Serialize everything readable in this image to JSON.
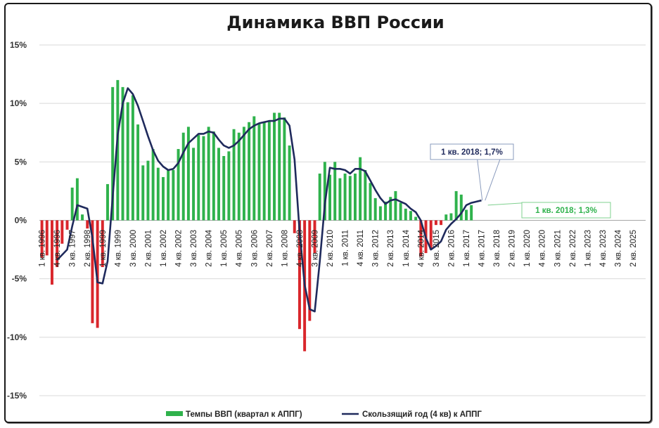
{
  "chart_data": {
    "type": "bar",
    "title": "Динамика ВВП России",
    "ylim": [
      -15,
      15
    ],
    "y_ticks": [
      "15%",
      "10%",
      "5%",
      "0%",
      "-5%",
      "-10%",
      "-15%"
    ],
    "y_tick_values": [
      15,
      10,
      5,
      0,
      -5,
      -10,
      -15
    ],
    "grid": true,
    "legend_position": "bottom",
    "x_range": [
      "1 кв. 1996",
      "4 кв. 2025"
    ],
    "x_ticks": [
      {
        "label": "1 кв. 1996",
        "q": 0
      },
      {
        "label": "4 кв. 1996",
        "q": 3
      },
      {
        "label": "3 кв. 1997",
        "q": 6
      },
      {
        "label": "2 кв. 1998",
        "q": 9
      },
      {
        "label": "1 кв. 1999",
        "q": 12
      },
      {
        "label": "4 кв. 1999",
        "q": 15
      },
      {
        "label": "3 кв. 2000",
        "q": 18
      },
      {
        "label": "2 кв. 2001",
        "q": 21
      },
      {
        "label": "1 кв. 2002",
        "q": 24
      },
      {
        "label": "4 кв. 2002",
        "q": 27
      },
      {
        "label": "3 кв. 2003",
        "q": 30
      },
      {
        "label": "2 кв. 2004",
        "q": 33
      },
      {
        "label": "1 кв. 2005",
        "q": 36
      },
      {
        "label": "4 кв. 2005",
        "q": 39
      },
      {
        "label": "3 кв. 2006",
        "q": 42
      },
      {
        "label": "2 кв. 2007",
        "q": 45
      },
      {
        "label": "1 кв. 2008",
        "q": 48
      },
      {
        "label": "4 кв. 2008",
        "q": 51
      },
      {
        "label": "3 кв. 2009",
        "q": 54
      },
      {
        "label": "2 кв. 2010",
        "q": 57
      },
      {
        "label": "1 кв. 2011",
        "q": 60
      },
      {
        "label": "4 кв. 2011",
        "q": 63
      },
      {
        "label": "3 кв. 2012",
        "q": 66
      },
      {
        "label": "2 кв. 2013",
        "q": 69
      },
      {
        "label": "1 кв. 2014",
        "q": 72
      },
      {
        "label": "4 кв. 2014",
        "q": 75
      },
      {
        "label": "3 кв. 2015",
        "q": 78
      },
      {
        "label": "2 кв. 2016",
        "q": 81
      },
      {
        "label": "1 кв. 2017",
        "q": 84
      },
      {
        "label": "4 кв. 2017",
        "q": 87
      },
      {
        "label": "3 кв. 2018",
        "q": 90
      },
      {
        "label": "2 кв. 2019",
        "q": 93
      },
      {
        "label": "1 кв. 2020",
        "q": 96
      },
      {
        "label": "4 кв. 2020",
        "q": 99
      },
      {
        "label": "3 кв. 2021",
        "q": 102
      },
      {
        "label": "2 кв. 2022",
        "q": 105
      },
      {
        "label": "1 кв. 2023",
        "q": 108
      },
      {
        "label": "4 кв. 2023",
        "q": 111
      },
      {
        "label": "3 кв. 2024",
        "q": 114
      },
      {
        "label": "2 кв. 2025",
        "q": 117
      }
    ],
    "series": [
      {
        "name": "Темпы ВВП (квартал к АППГ)",
        "kind": "bar",
        "positive_color": "#2fb24c",
        "negative_color": "#d9262b",
        "values": [
          -3.2,
          -3.0,
          -5.5,
          -4.0,
          -2.0,
          -0.8,
          2.8,
          3.6,
          0.5,
          -0.7,
          -8.8,
          -9.2,
          -4.0,
          3.1,
          11.4,
          12.0,
          11.4,
          10.1,
          10.7,
          8.2,
          4.7,
          5.1,
          6.1,
          4.5,
          3.7,
          4.3,
          4.3,
          6.1,
          7.5,
          8.0,
          6.2,
          7.3,
          7.2,
          8.0,
          7.6,
          6.2,
          5.5,
          5.9,
          7.8,
          7.5,
          8.0,
          8.4,
          8.9,
          8.3,
          8.4,
          8.5,
          9.2,
          9.2,
          8.8,
          6.4,
          -1.1,
          -9.3,
          -11.2,
          -8.6,
          -2.8,
          4.0,
          5.0,
          3.9,
          5.0,
          3.6,
          4.0,
          3.8,
          4.0,
          5.4,
          4.3,
          3.2,
          1.9,
          1.2,
          1.6,
          2.0,
          2.5,
          1.5,
          1.0,
          0.8,
          0.3,
          -3.1,
          -2.8,
          -2.5,
          -0.4,
          -0.4,
          0.5,
          0.6,
          2.5,
          2.2,
          0.9,
          1.3
        ],
        "annotation": {
          "text": "1 кв. 2018; 1,3%",
          "color": "#2fb24c",
          "q": 88,
          "value": 1.3
        }
      },
      {
        "name": "Скользящий год (4 кв) к АППГ",
        "kind": "line",
        "color": "#1f2a5c",
        "points": [
          [
            3,
            -3.4
          ],
          [
            5,
            -2.5
          ],
          [
            6,
            -0.5
          ],
          [
            7,
            1.3
          ],
          [
            9,
            1.0
          ],
          [
            10,
            -1.5
          ],
          [
            11,
            -5.3
          ],
          [
            12,
            -5.4
          ],
          [
            13,
            -3.5
          ],
          [
            14,
            2.0
          ],
          [
            15,
            7.3
          ],
          [
            16,
            10.0
          ],
          [
            17,
            11.3
          ],
          [
            18,
            10.8
          ],
          [
            19,
            9.8
          ],
          [
            20,
            8.5
          ],
          [
            21,
            7.2
          ],
          [
            22,
            6.0
          ],
          [
            23,
            5.1
          ],
          [
            24,
            4.6
          ],
          [
            25,
            4.3
          ],
          [
            26,
            4.4
          ],
          [
            27,
            4.9
          ],
          [
            28,
            5.8
          ],
          [
            29,
            6.6
          ],
          [
            30,
            7.0
          ],
          [
            31,
            7.4
          ],
          [
            32,
            7.4
          ],
          [
            33,
            7.6
          ],
          [
            34,
            7.5
          ],
          [
            35,
            6.9
          ],
          [
            36,
            6.4
          ],
          [
            37,
            6.2
          ],
          [
            38,
            6.4
          ],
          [
            39,
            6.8
          ],
          [
            40,
            7.3
          ],
          [
            41,
            7.8
          ],
          [
            42,
            8.1
          ],
          [
            43,
            8.3
          ],
          [
            44,
            8.4
          ],
          [
            45,
            8.5
          ],
          [
            46,
            8.5
          ],
          [
            47,
            8.7
          ],
          [
            48,
            8.7
          ],
          [
            49,
            8.1
          ],
          [
            50,
            5.2
          ],
          [
            51,
            -0.9
          ],
          [
            52,
            -5.5
          ],
          [
            53,
            -7.6
          ],
          [
            54,
            -7.8
          ],
          [
            55,
            -3.5
          ],
          [
            56,
            1.4
          ],
          [
            57,
            4.5
          ],
          [
            58,
            4.4
          ],
          [
            59,
            4.4
          ],
          [
            60,
            4.3
          ],
          [
            61,
            4.0
          ],
          [
            62,
            4.4
          ],
          [
            63,
            4.4
          ],
          [
            64,
            4.2
          ],
          [
            65,
            3.4
          ],
          [
            66,
            2.6
          ],
          [
            67,
            1.9
          ],
          [
            68,
            1.4
          ],
          [
            69,
            1.7
          ],
          [
            70,
            1.8
          ],
          [
            71,
            1.6
          ],
          [
            72,
            1.4
          ],
          [
            73,
            1.0
          ],
          [
            74,
            0.7
          ],
          [
            75,
            0.0
          ],
          [
            76,
            -1.5
          ],
          [
            77,
            -2.5
          ],
          [
            78,
            -2.2
          ],
          [
            79,
            -1.8
          ],
          [
            80,
            -0.8
          ],
          [
            81,
            -0.3
          ],
          [
            82,
            0.1
          ],
          [
            83,
            0.6
          ],
          [
            84,
            1.3
          ],
          [
            85,
            1.5
          ],
          [
            86,
            1.6
          ],
          [
            87,
            1.7
          ]
        ],
        "annotation": {
          "text": "1 кв. 2018; 1,7%",
          "color": "#1f2a5c",
          "q": 88,
          "value": 1.7
        }
      }
    ]
  }
}
